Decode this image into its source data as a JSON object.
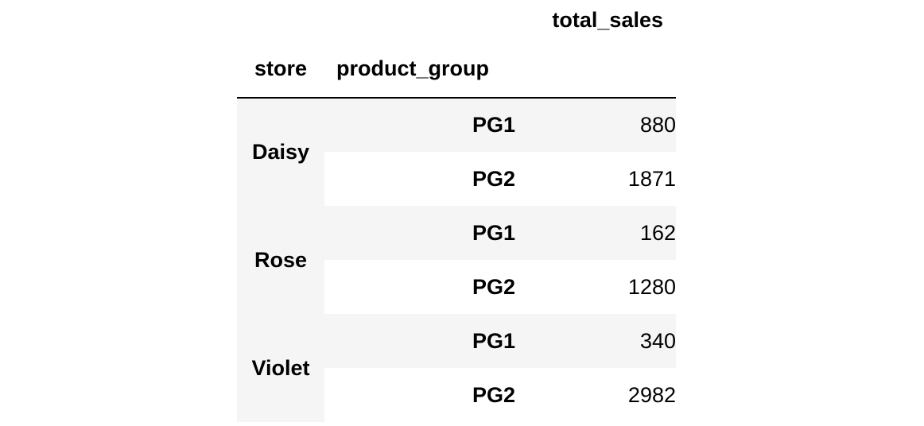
{
  "table": {
    "headers": {
      "value_column": "total_sales",
      "index_names": [
        "store",
        "product_group"
      ]
    },
    "rows": [
      {
        "store": "Daisy",
        "product_group": "PG1",
        "total_sales": "880"
      },
      {
        "store": "",
        "product_group": "PG2",
        "total_sales": "1871"
      },
      {
        "store": "Rose",
        "product_group": "PG1",
        "total_sales": "162"
      },
      {
        "store": "",
        "product_group": "PG2",
        "total_sales": "1280"
      },
      {
        "store": "Violet",
        "product_group": "PG1",
        "total_sales": "340"
      },
      {
        "store": "",
        "product_group": "PG2",
        "total_sales": "2982"
      }
    ],
    "groups": [
      {
        "label": "Daisy",
        "rows": 2
      },
      {
        "label": "Rose",
        "rows": 2
      },
      {
        "label": "Violet",
        "rows": 2
      }
    ],
    "stripe_color": "#f5f5f5",
    "header_rule_color": "#000000"
  }
}
